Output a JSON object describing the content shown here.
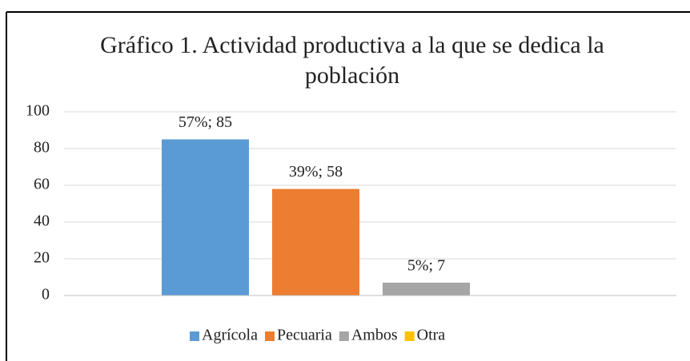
{
  "chart_data": {
    "type": "bar",
    "title": "Gráfico  1. Actividad productiva a la que se dedica la población",
    "categories": [
      null
    ],
    "series": [
      {
        "name": "Agrícola",
        "color": "#5b9bd5",
        "values": [
          85
        ],
        "value_labels": [
          "57%; 85"
        ]
      },
      {
        "name": "Pecuaria",
        "color": "#ed7d31",
        "values": [
          58
        ],
        "value_labels": [
          "39%; 58"
        ]
      },
      {
        "name": "Ambos",
        "color": "#a5a5a5",
        "values": [
          7
        ],
        "value_labels": [
          "5%; 7"
        ]
      },
      {
        "name": "Otra",
        "color": "#ffc000",
        "values": [
          null
        ],
        "value_labels": [
          null
        ]
      }
    ],
    "ylim": [
      0,
      100
    ],
    "yticks": [
      0,
      20,
      40,
      60,
      80,
      100
    ],
    "grid": true,
    "legend": "bottom"
  }
}
